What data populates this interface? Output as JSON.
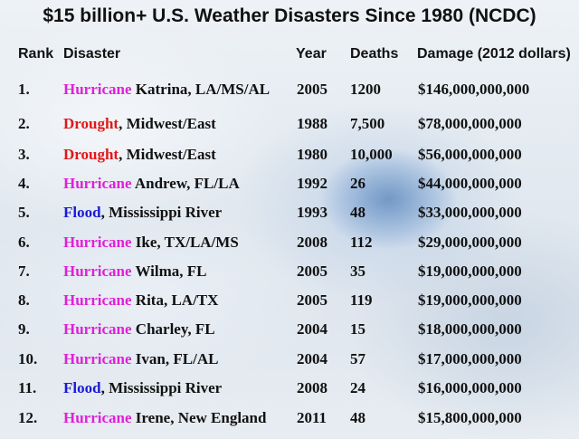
{
  "title": "$15 billion+ U.S. Weather Disasters Since 1980 (NCDC)",
  "headers": {
    "rank": "Rank",
    "disaster": "Disaster",
    "year": "Year",
    "deaths": "Deaths",
    "damage": "Damage (2012 dollars)"
  },
  "type_colors": {
    "Hurricane": "#e020d8",
    "Drought": "#e01818",
    "Flood": "#1a1ad8"
  },
  "rows": [
    {
      "rank": "1.",
      "type": "Hurricane",
      "name": " Katrina, LA/MS/AL",
      "year": "2005",
      "deaths": "1200",
      "damage": "$146,000,000,000"
    },
    {
      "rank": "2.",
      "type": "Drought",
      "name": ", Midwest/East",
      "year": "1988",
      "deaths": "7,500",
      "damage": "$78,000,000,000"
    },
    {
      "rank": "3.",
      "type": "Drought",
      "name": ", Midwest/East",
      "year": "1980",
      "deaths": "10,000",
      "damage": "$56,000,000,000"
    },
    {
      "rank": "4.",
      "type": "Hurricane",
      "name": " Andrew, FL/LA",
      "year": "1992",
      "deaths": "26",
      "damage": "$44,000,000,000"
    },
    {
      "rank": "5.",
      "type": "Flood",
      "name": ", Mississippi River",
      "year": "1993",
      "deaths": "48",
      "damage": "$33,000,000,000"
    },
    {
      "rank": "6.",
      "type": "Hurricane",
      "name": " Ike, TX/LA/MS",
      "year": "2008",
      "deaths": "112",
      "damage": "$29,000,000,000"
    },
    {
      "rank": "7.",
      "type": "Hurricane",
      "name": " Wilma, FL",
      "year": "2005",
      "deaths": "35",
      "damage": "$19,000,000,000"
    },
    {
      "rank": "8.",
      "type": "Hurricane",
      "name": " Rita, LA/TX",
      "year": "2005",
      "deaths": "119",
      "damage": "$19,000,000,000"
    },
    {
      "rank": "9.",
      "type": "Hurricane",
      "name": " Charley, FL",
      "year": "2004",
      "deaths": "15",
      "damage": "$18,000,000,000"
    },
    {
      "rank": "10.",
      "type": "Hurricane",
      "name": " Ivan, FL/AL",
      "year": "2004",
      "deaths": "57",
      "damage": "$17,000,000,000"
    },
    {
      "rank": "11.",
      "type": "Flood",
      "name": ", Mississippi River",
      "year": "2008",
      "deaths": "24",
      "damage": "$16,000,000,000"
    },
    {
      "rank": "12.",
      "type": "Hurricane",
      "name": " Irene, New England",
      "year": "2011",
      "deaths": "48",
      "damage": "$15,800,000,000"
    }
  ]
}
